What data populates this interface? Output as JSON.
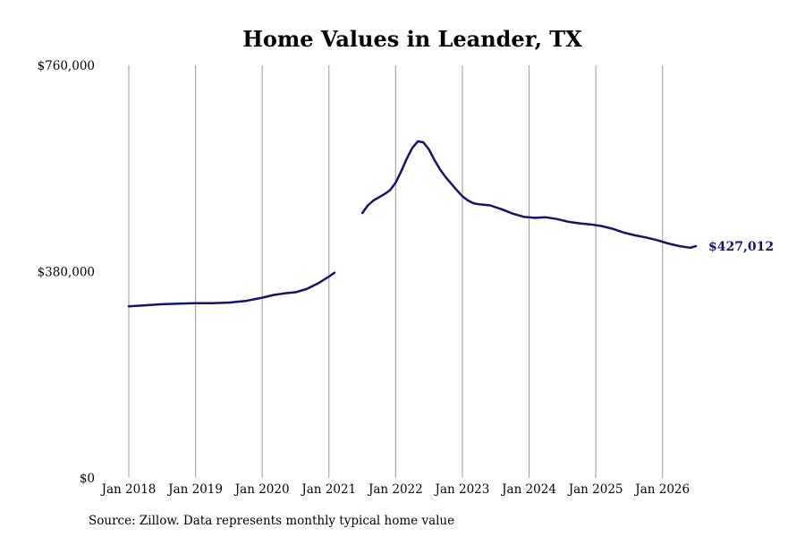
{
  "chart_data": {
    "type": "line",
    "title": "Home Values in Leander, TX",
    "xlabel": "",
    "ylabel": "",
    "ylim": [
      0,
      760000
    ],
    "y_tick_labels": [
      "$0",
      "$380,000",
      "$760,000"
    ],
    "y_tick_values": [
      0,
      380000,
      760000
    ],
    "x_range": [
      "2018-01",
      "2026-07"
    ],
    "x_tick_labels": [
      "Jan 2018",
      "Jan 2019",
      "Jan 2020",
      "Jan 2021",
      "Jan 2022",
      "Jan 2023",
      "Jan 2024",
      "Jan 2025",
      "Jan 2026"
    ],
    "x_tick_values": [
      "2018-01",
      "2019-01",
      "2020-01",
      "2021-01",
      "2022-01",
      "2023-01",
      "2024-01",
      "2025-01",
      "2026-01"
    ],
    "grid": "vertical",
    "line_color": "#14146b",
    "segments": [
      {
        "x": [
          "2018-01",
          "2018-04",
          "2018-07",
          "2018-10",
          "2019-01",
          "2019-04",
          "2019-07",
          "2019-10",
          "2020-01",
          "2020-03",
          "2020-05",
          "2020-07",
          "2020-09",
          "2020-11",
          "2021-01",
          "2021-02"
        ],
        "y": [
          316000,
          318000,
          320000,
          321000,
          322000,
          322000,
          323000,
          326000,
          332000,
          337000,
          340000,
          342000,
          348000,
          358000,
          371000,
          378000
        ]
      },
      {
        "x": [
          "2021-07",
          "2021-08",
          "2021-09",
          "2021-10",
          "2021-11",
          "2021-12",
          "2022-01",
          "2022-02",
          "2022-03",
          "2022-04",
          "2022-05",
          "2022-06",
          "2022-07",
          "2022-08",
          "2022-09",
          "2022-10",
          "2022-11",
          "2022-12",
          "2023-01",
          "2023-02",
          "2023-03",
          "2023-04",
          "2023-06",
          "2023-08",
          "2023-10",
          "2023-12",
          "2024-02",
          "2024-04",
          "2024-06",
          "2024-08",
          "2024-10",
          "2024-12",
          "2025-02",
          "2025-04",
          "2025-06",
          "2025-08",
          "2025-10",
          "2025-12",
          "2026-02",
          "2026-04",
          "2026-06",
          "2026-07"
        ],
        "y": [
          488000,
          502000,
          511000,
          517000,
          523000,
          530000,
          544000,
          565000,
          588000,
          608000,
          620000,
          618000,
          605000,
          585000,
          568000,
          554000,
          542000,
          530000,
          519000,
          511000,
          506000,
          504000,
          502000,
          495000,
          487000,
          481000,
          479000,
          480000,
          477000,
          472000,
          469000,
          467000,
          464000,
          459000,
          452000,
          447000,
          443000,
          438000,
          432000,
          427000,
          424000,
          427012
        ]
      }
    ],
    "annotations": [
      {
        "text": "$427,012",
        "x": "2026-07",
        "y": 427012
      }
    ]
  },
  "source_note": "Source: Zillow. Data represents monthly typical home value"
}
